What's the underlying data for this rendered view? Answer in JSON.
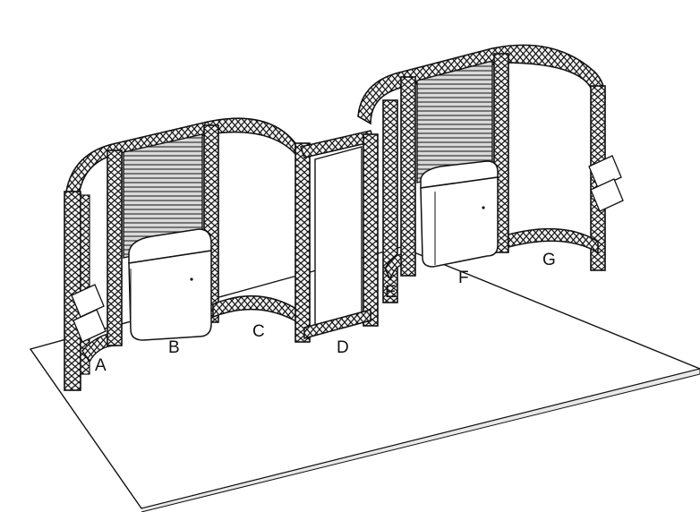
{
  "callouts": {
    "a": "A",
    "b": "B",
    "c": "C",
    "d": "D",
    "e": "E",
    "f": "F",
    "g": "G"
  },
  "colors": {
    "line": "#111111",
    "floor": "#ffffff",
    "truss": "#1a1a1a",
    "counter": "#ffffff"
  }
}
